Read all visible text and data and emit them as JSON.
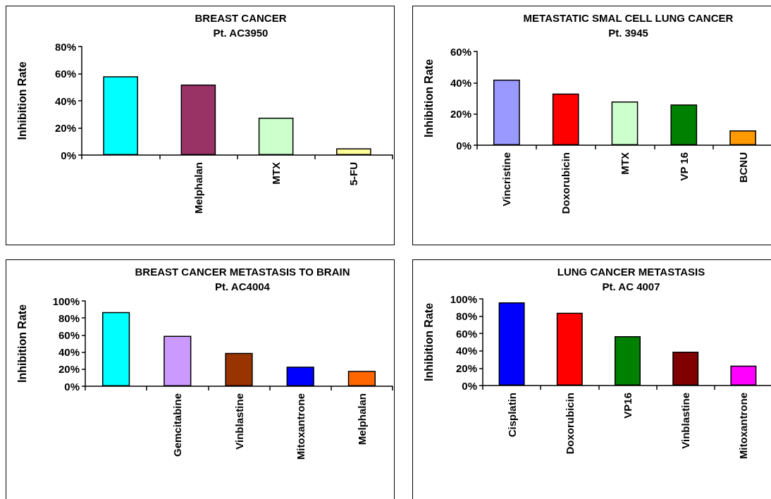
{
  "chart_data": [
    {
      "type": "bar",
      "title": "BREAST CANCER",
      "subtitle": "Pt. AC3950",
      "ylabel": "Inhibition Rate",
      "categories": [
        null,
        "Melphalan",
        "MTX",
        "5-FU"
      ],
      "values": [
        58,
        52,
        27.5,
        5
      ],
      "colors": [
        "#00ffff",
        "#993366",
        "#ccffcc",
        "#ffff99"
      ],
      "ylim": [
        0,
        80
      ],
      "yticks": [
        {
          "value": 0,
          "label": "0%"
        },
        {
          "value": 20,
          "label": "20%"
        },
        {
          "value": 40,
          "label": "40%"
        },
        {
          "value": 60,
          "label": "60%"
        },
        {
          "value": 80,
          "label": "80%"
        }
      ]
    },
    {
      "type": "bar",
      "title": "METASTATIC SMAL CELL LUNG CANCER",
      "subtitle": "Pt. 3945",
      "ylabel": "Inhibition Rate",
      "categories": [
        "Vincristine",
        "Doxorubicin",
        "MTX",
        "VP 16",
        "BCNU"
      ],
      "values": [
        42,
        33,
        28,
        26,
        9.5
      ],
      "colors": [
        "#9999ff",
        "#ff0000",
        "#ccffcc",
        "#008000",
        "#ff9900"
      ],
      "ylim": [
        0,
        60
      ],
      "yticks": [
        {
          "value": 0,
          "label": "0%"
        },
        {
          "value": 20,
          "label": "20%"
        },
        {
          "value": 40,
          "label": "40%"
        },
        {
          "value": 60,
          "label": "60%"
        }
      ]
    },
    {
      "type": "bar",
      "title": "BREAST CANCER METASTASIS TO BRAIN",
      "subtitle": "Pt. AC4004",
      "ylabel": "Inhibition Rate",
      "categories": [
        null,
        "Gemcitabine",
        "Vinblastine",
        "Mitoxantrone",
        "Melphalan"
      ],
      "values": [
        87,
        59,
        39,
        23,
        18
      ],
      "colors": [
        "#00ffff",
        "#cc99ff",
        "#993300",
        "#0000ff",
        "#ff6600"
      ],
      "ylim": [
        0,
        100
      ],
      "yticks": [
        {
          "value": 0,
          "label": "0%"
        },
        {
          "value": 20,
          "label": "20%"
        },
        {
          "value": 40,
          "label": "40%"
        },
        {
          "value": 60,
          "label": "60%"
        },
        {
          "value": 80,
          "label": "80%"
        },
        {
          "value": 100,
          "label": "100%"
        }
      ]
    },
    {
      "type": "bar",
      "title": "LUNG CANCER METASTASIS",
      "subtitle": "Pt. AC 4007",
      "ylabel": "Inhibition Rate",
      "categories": [
        "Cisplatin",
        "Doxorubicin",
        "VP16",
        "Vinblastine",
        "Mitoxantrone"
      ],
      "values": [
        96,
        84,
        57,
        39,
        23
      ],
      "colors": [
        "#0000ff",
        "#ff0000",
        "#008000",
        "#800000",
        "#ff00ff"
      ],
      "ylim": [
        0,
        100
      ],
      "yticks": [
        {
          "value": 0,
          "label": "0%"
        },
        {
          "value": 20,
          "label": "20%"
        },
        {
          "value": 40,
          "label": "40%"
        },
        {
          "value": 60,
          "label": "60%"
        },
        {
          "value": 80,
          "label": "80%"
        },
        {
          "value": 100,
          "label": "100%"
        }
      ]
    }
  ]
}
